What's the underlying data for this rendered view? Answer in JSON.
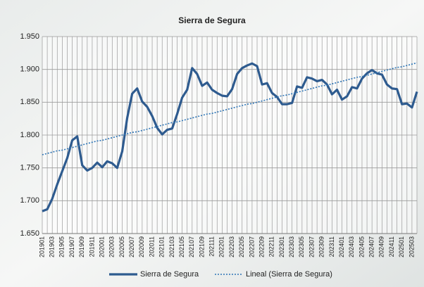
{
  "chart_data": {
    "type": "line",
    "title": "Sierra de Segura",
    "categories": [
      "201901",
      null,
      "201903",
      null,
      "201905",
      null,
      "201907",
      null,
      "201909",
      null,
      "201911",
      null,
      "202001",
      null,
      "202003",
      null,
      "202005",
      null,
      "202007",
      null,
      "202009",
      null,
      "202011",
      null,
      "202101",
      null,
      "202103",
      null,
      "202105",
      null,
      "202107",
      null,
      "202109",
      null,
      "202111",
      null,
      "202201",
      null,
      "202203",
      null,
      "202205",
      null,
      "202207",
      null,
      "202209",
      null,
      "202211",
      null,
      "202301",
      null,
      "202303",
      null,
      "202305",
      null,
      "202307",
      null,
      "202309",
      null,
      "202311",
      null,
      "202401",
      null,
      "202403",
      null,
      "202405",
      null,
      "202407",
      null,
      "202409",
      null,
      "202411",
      null,
      "202501",
      null,
      "202503",
      null
    ],
    "series": [
      {
        "name": "Sierra de Segura",
        "color": "#2e5b8f",
        "style": "solid",
        "values": [
          1.684,
          1.687,
          1.703,
          1.725,
          1.745,
          1.765,
          1.792,
          1.798,
          1.754,
          1.746,
          1.75,
          1.758,
          1.751,
          1.76,
          1.757,
          1.75,
          1.775,
          1.826,
          1.863,
          1.871,
          1.851,
          1.843,
          1.829,
          1.811,
          1.801,
          1.808,
          1.81,
          1.832,
          1.857,
          1.869,
          1.902,
          1.893,
          1.875,
          1.88,
          1.869,
          1.864,
          1.86,
          1.859,
          1.87,
          1.893,
          1.902,
          1.906,
          1.909,
          1.905,
          1.877,
          1.879,
          1.864,
          1.858,
          1.847,
          1.847,
          1.849,
          1.874,
          1.872,
          1.888,
          1.886,
          1.882,
          1.884,
          1.877,
          1.862,
          1.869,
          1.854,
          1.859,
          1.873,
          1.871,
          1.886,
          1.894,
          1.899,
          1.894,
          1.892,
          1.877,
          1.871,
          1.87,
          1.847,
          1.848,
          1.842,
          1.866
        ]
      },
      {
        "name": "Lineal (Sierra de Segura)",
        "color": "#2e75b6",
        "style": "dotted",
        "values": [
          1.77,
          1.772,
          1.774,
          1.776,
          1.777,
          1.779,
          1.781,
          1.783,
          1.785,
          1.787,
          1.789,
          1.791,
          1.792,
          1.794,
          1.796,
          1.798,
          1.8,
          1.802,
          1.804,
          1.805,
          1.807,
          1.809,
          1.811,
          1.813,
          1.815,
          1.817,
          1.819,
          1.82,
          1.822,
          1.824,
          1.826,
          1.828,
          1.83,
          1.832,
          1.833,
          1.835,
          1.837,
          1.839,
          1.841,
          1.843,
          1.845,
          1.847,
          1.848,
          1.85,
          1.852,
          1.854,
          1.856,
          1.858,
          1.86,
          1.861,
          1.863,
          1.865,
          1.867,
          1.869,
          1.871,
          1.873,
          1.875,
          1.876,
          1.878,
          1.88,
          1.882,
          1.884,
          1.886,
          1.888,
          1.889,
          1.891,
          1.893,
          1.895,
          1.897,
          1.899,
          1.901,
          1.903,
          1.904,
          1.906,
          1.908,
          1.91
        ]
      }
    ],
    "ylim": [
      1.65,
      1.95
    ],
    "yticks": [
      {
        "value": 1.65,
        "label": "1.650"
      },
      {
        "value": 1.7,
        "label": "1.700"
      },
      {
        "value": 1.75,
        "label": "1.750"
      },
      {
        "value": 1.8,
        "label": "1.800"
      },
      {
        "value": 1.85,
        "label": "1.850"
      },
      {
        "value": 1.9,
        "label": "1.900"
      },
      {
        "value": 1.95,
        "label": "1.950"
      }
    ],
    "grid": true,
    "legend": "bottom"
  }
}
